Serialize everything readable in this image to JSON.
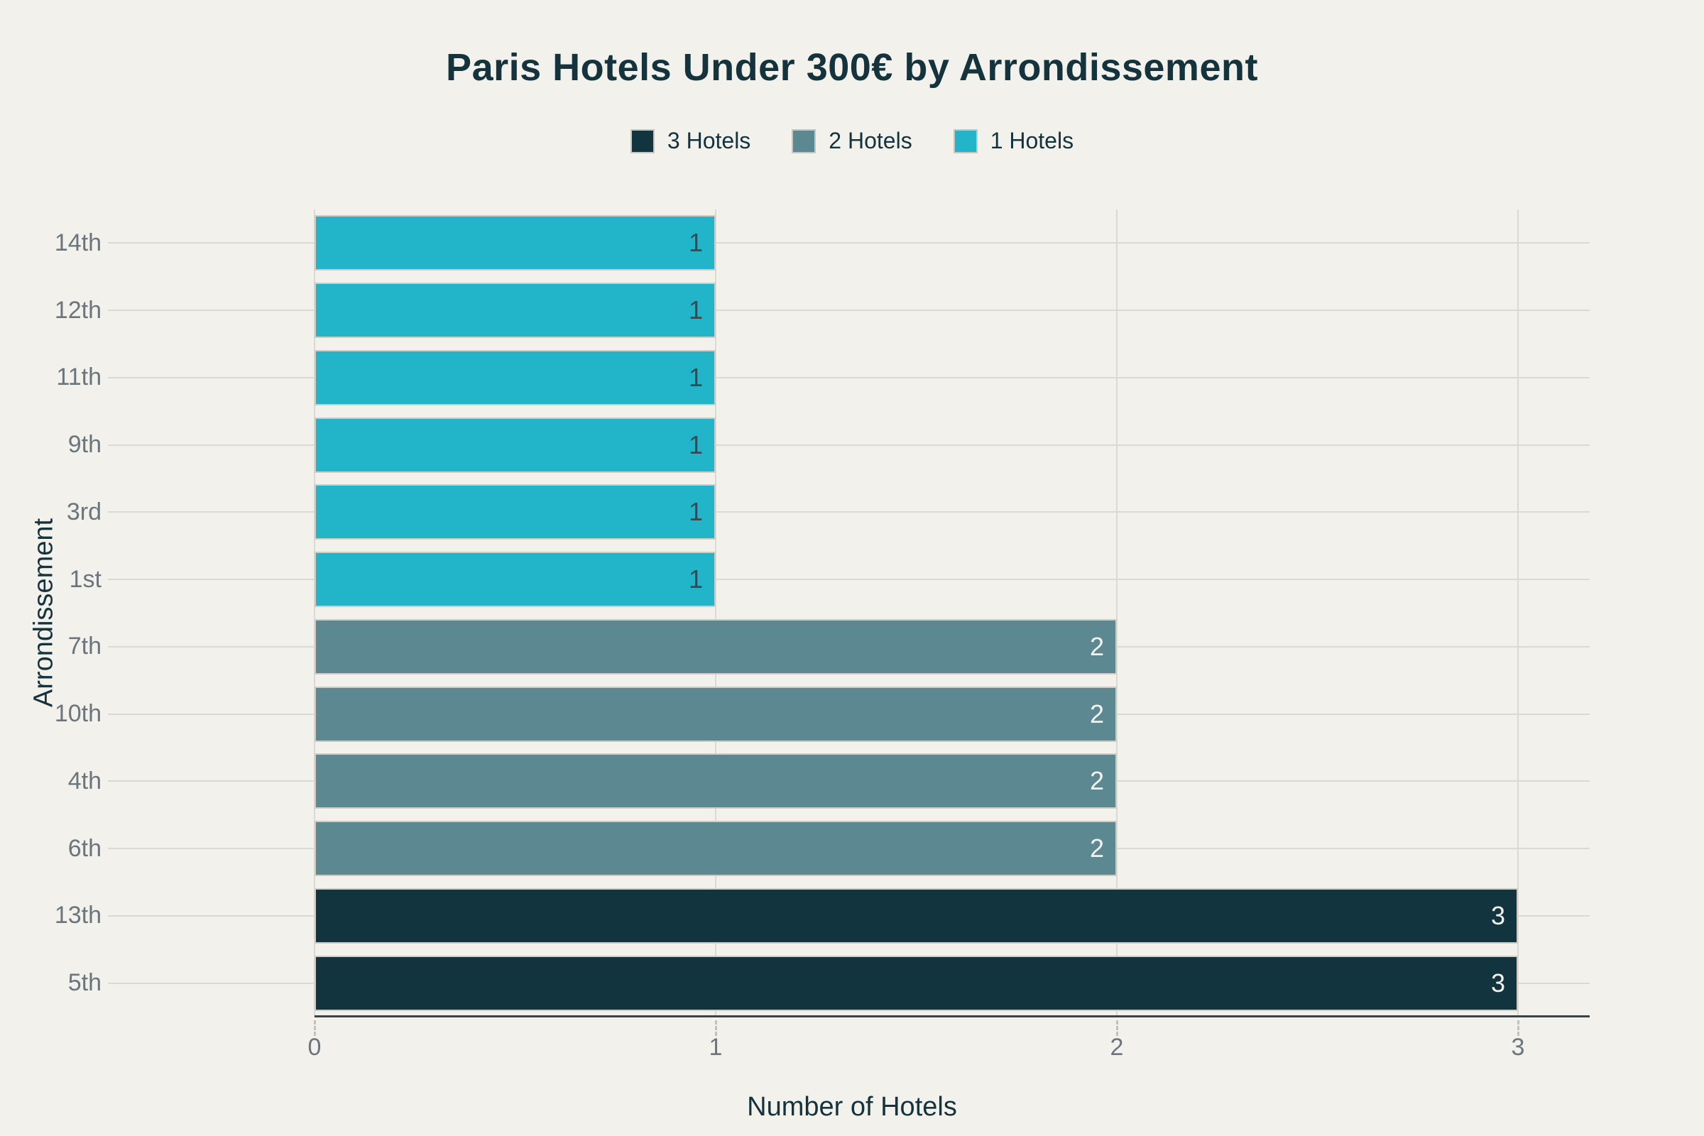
{
  "title": "Paris Hotels Under 300€ by Arrondissement",
  "legend": {
    "items": [
      {
        "label": "3 Hotels",
        "color": "#12343f"
      },
      {
        "label": "2 Hotels",
        "color": "#5b8891"
      },
      {
        "label": "1 Hotels",
        "color": "#22b5c9"
      }
    ]
  },
  "colors": {
    "background": "#f2f1ec",
    "title_text": "#14333c",
    "axis_title_text": "#14333c",
    "tick_text": "#6b757c",
    "gridline": "#dbd9d3",
    "axis_line": "#37424a",
    "bar_outline": "#cfccc6",
    "bar_dark": "#12343f",
    "bar_slate": "#5b8891",
    "bar_cyan": "#22b5c9",
    "value_label_dark": "#3f464d",
    "value_label_light": "#f2f1ec"
  },
  "chart_data": {
    "type": "bar",
    "orientation": "horizontal",
    "title": "Paris Hotels Under 300€ by Arrondissement",
    "xlabel": "Number of Hotels",
    "ylabel": "Arrondissement",
    "grid": true,
    "legend_position": "top",
    "xlim": [
      0,
      3.18
    ],
    "xticks": [
      0,
      1,
      2,
      3
    ],
    "categories": [
      "14th",
      "12th",
      "11th",
      "9th",
      "3rd",
      "1st",
      "7th",
      "10th",
      "4th",
      "6th",
      "13th",
      "5th"
    ],
    "values": [
      1,
      1,
      1,
      1,
      1,
      1,
      2,
      2,
      2,
      2,
      3,
      3
    ],
    "series_of_point": [
      "1 Hotels",
      "1 Hotels",
      "1 Hotels",
      "1 Hotels",
      "1 Hotels",
      "1 Hotels",
      "2 Hotels",
      "2 Hotels",
      "2 Hotels",
      "2 Hotels",
      "3 Hotels",
      "3 Hotels"
    ],
    "bar_colors": [
      "#22b5c9",
      "#22b5c9",
      "#22b5c9",
      "#22b5c9",
      "#22b5c9",
      "#22b5c9",
      "#5b8891",
      "#5b8891",
      "#5b8891",
      "#5b8891",
      "#12343f",
      "#12343f"
    ],
    "value_label_colors": [
      "#3f464d",
      "#3f464d",
      "#3f464d",
      "#3f464d",
      "#3f464d",
      "#3f464d",
      "#f2f1ec",
      "#f2f1ec",
      "#f2f1ec",
      "#f2f1ec",
      "#f2f1ec",
      "#f2f1ec"
    ]
  }
}
